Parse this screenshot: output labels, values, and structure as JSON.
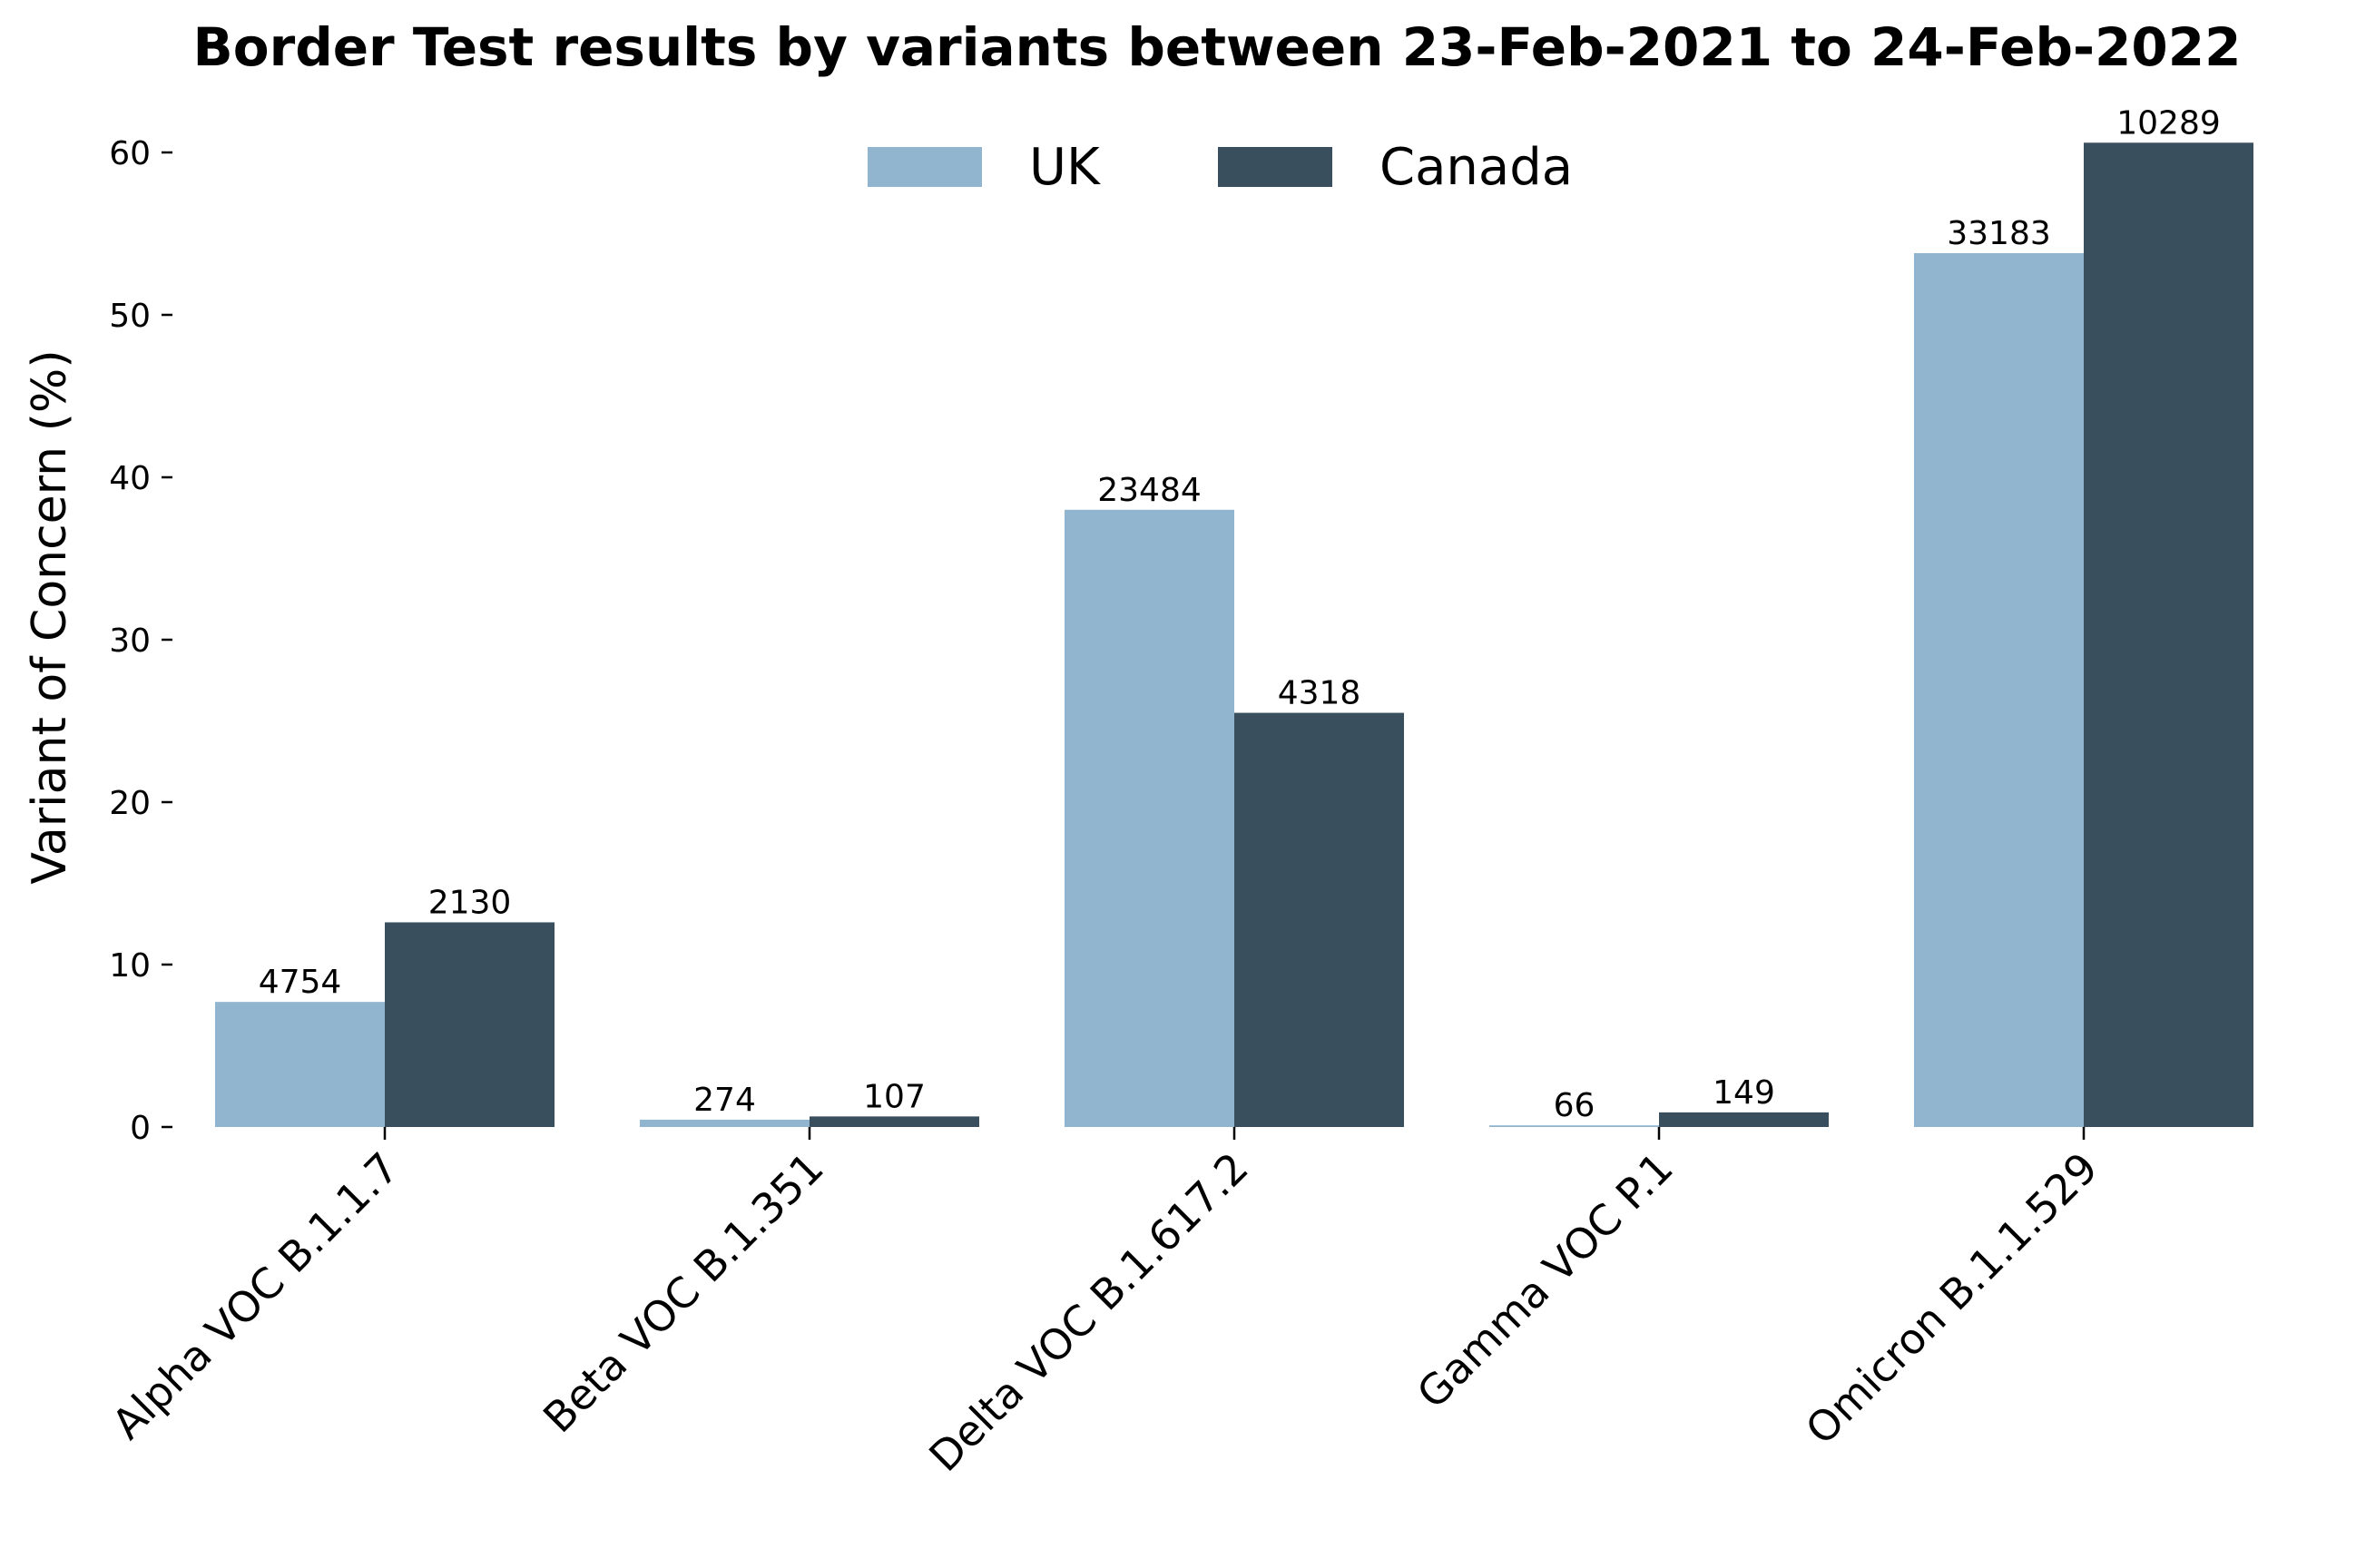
{
  "chart_data": {
    "type": "bar",
    "title": "Border Test results by variants between 23-Feb-2021 to 24-Feb-2022",
    "xlabel": "",
    "ylabel": "Variant of Concern (%)",
    "ylim": [
      0,
      62
    ],
    "yticks": [
      0,
      10,
      20,
      30,
      40,
      50,
      60
    ],
    "grid": false,
    "legend_position": "top-center",
    "categories": [
      "Alpha VOC B.1.1.7",
      "Beta VOC B.1.351",
      "Delta VOC B.1.617.2",
      "Gamma VOC P.1",
      "Omicron B.1.1.529"
    ],
    "series": [
      {
        "name": "UK",
        "color": "#91b4cf",
        "values": [
          7.7,
          0.45,
          38.0,
          0.1,
          53.8
        ],
        "labels": [
          "4754",
          "274",
          "23484",
          "66",
          "33183"
        ]
      },
      {
        "name": "Canada",
        "color": "#3a4f5e",
        "values": [
          12.6,
          0.65,
          25.5,
          0.9,
          60.6
        ],
        "labels": [
          "2130",
          "107",
          "4318",
          "149",
          "10289"
        ]
      }
    ]
  }
}
